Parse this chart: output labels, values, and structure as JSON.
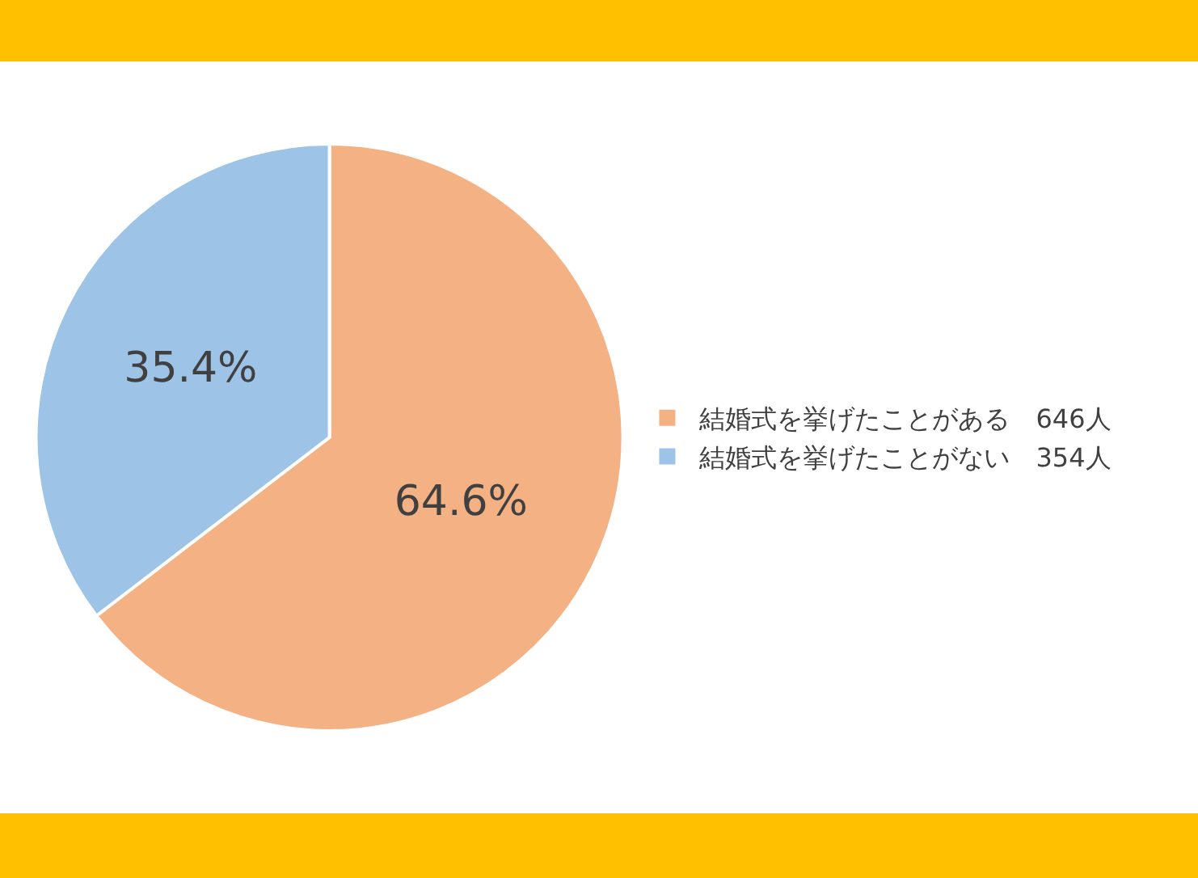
{
  "chart_data": {
    "type": "pie",
    "categories": [
      "結婚式を挙げたことがある　646人",
      "結婚式を挙げたことがない　354人"
    ],
    "values": [
      64.6,
      35.4
    ],
    "colors": [
      "#f4b183",
      "#9dc3e6"
    ],
    "value_labels": [
      "64.6%",
      "35.4%"
    ],
    "legend": "right"
  }
}
